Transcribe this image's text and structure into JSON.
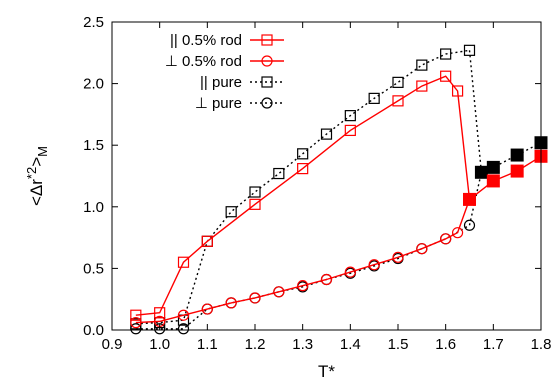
{
  "chart_data": {
    "type": "line",
    "xlabel": "T*",
    "ylabel_parts": {
      "main": "<Δr",
      "sup": "*2",
      "close": ">",
      "sub": "M"
    },
    "xlim": [
      0.9,
      1.8
    ],
    "ylim": [
      0.0,
      2.5
    ],
    "xticks": [
      0.9,
      1.0,
      1.1,
      1.2,
      1.3,
      1.4,
      1.5,
      1.6,
      1.7,
      1.8
    ],
    "yticks": [
      0.0,
      0.5,
      1.0,
      1.5,
      2.0,
      2.5
    ],
    "xtick_labels": [
      "0.9",
      "1.0",
      "1.1",
      "1.2",
      "1.3",
      "1.4",
      "1.5",
      "1.6",
      "1.7",
      "1.8"
    ],
    "ytick_labels": [
      "0.0",
      "0.5",
      "1.0",
      "1.5",
      "2.0",
      "2.5"
    ],
    "grid": false,
    "legend_position": "top-left",
    "series": [
      {
        "name": "|| 0.5% rod",
        "color": "#ff0000",
        "marker": "square-open",
        "line": "solid",
        "x": [
          0.95,
          1.0,
          1.05,
          1.1,
          1.2,
          1.3,
          1.4,
          1.5,
          1.55,
          1.6,
          1.625,
          1.65
        ],
        "y": [
          0.12,
          0.14,
          0.55,
          0.72,
          1.02,
          1.31,
          1.62,
          1.86,
          1.98,
          2.06,
          1.94,
          1.06
        ]
      },
      {
        "name": "⊥ 0.5% rod",
        "color": "#ff0000",
        "marker": "circle-open",
        "line": "solid",
        "x": [
          0.95,
          1.0,
          1.05,
          1.1,
          1.15,
          1.2,
          1.25,
          1.3,
          1.35,
          1.4,
          1.45,
          1.5,
          1.55,
          1.6,
          1.625,
          1.65
        ],
        "y": [
          0.06,
          0.07,
          0.12,
          0.17,
          0.22,
          0.26,
          0.31,
          0.36,
          0.41,
          0.47,
          0.53,
          0.59,
          0.66,
          0.74,
          0.79,
          1.06
        ]
      },
      {
        "name": "|| pure",
        "color": "#000000",
        "marker": "square-open",
        "line": "dotted",
        "x": [
          0.95,
          1.0,
          1.05,
          1.1,
          1.15,
          1.2,
          1.25,
          1.3,
          1.35,
          1.4,
          1.45,
          1.5,
          1.55,
          1.6,
          1.65
        ],
        "y": [
          0.05,
          0.06,
          0.08,
          0.72,
          0.96,
          1.12,
          1.27,
          1.43,
          1.59,
          1.74,
          1.88,
          2.01,
          2.15,
          2.24,
          2.27
        ]
      },
      {
        "name": "⊥ pure",
        "color": "#000000",
        "marker": "circle-open",
        "line": "dotted",
        "x": [
          0.95,
          1.0,
          1.05,
          1.1,
          1.15,
          1.2,
          1.25,
          1.3,
          1.35,
          1.4,
          1.45,
          1.5,
          1.55,
          1.6,
          1.65
        ],
        "y": [
          0.01,
          0.01,
          0.01,
          0.17,
          0.22,
          0.26,
          0.31,
          0.35,
          0.41,
          0.46,
          0.52,
          0.58,
          0.66,
          0.74,
          0.85
        ]
      }
    ],
    "extra_series": [
      {
        "color": "#ff0000",
        "marker": "square-filled",
        "line": "solid",
        "x": [
          1.65,
          1.7,
          1.75,
          1.8
        ],
        "y": [
          1.06,
          1.21,
          1.29,
          1.41
        ]
      },
      {
        "color": "#000000",
        "marker": "square-filled",
        "line": "dotted",
        "x": [
          1.675,
          1.7,
          1.75,
          1.8
        ],
        "y": [
          1.28,
          1.32,
          1.42,
          1.52
        ]
      }
    ],
    "connectors": [
      {
        "color": "#000000",
        "line": "dotted",
        "from": [
          1.65,
          2.27
        ],
        "to": [
          1.675,
          1.28
        ]
      },
      {
        "color": "#000000",
        "line": "dotted",
        "from": [
          1.65,
          0.85
        ],
        "to": [
          1.675,
          1.28
        ]
      }
    ]
  }
}
